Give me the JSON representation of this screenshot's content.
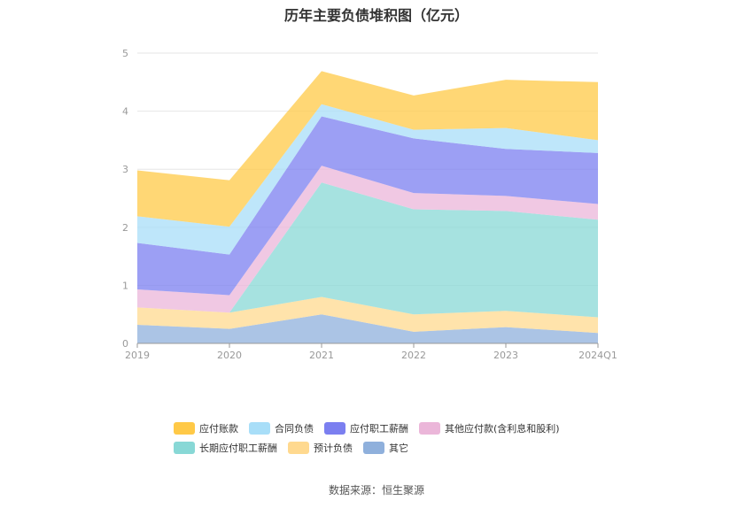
{
  "chart_data": {
    "type": "area",
    "stacked": true,
    "title": "历年主要负债堆积图（亿元）",
    "categories": [
      "2019",
      "2020",
      "2021",
      "2022",
      "2023",
      "2024Q1"
    ],
    "ylim": [
      0,
      5
    ],
    "yticks": [
      "0",
      "1",
      "2",
      "3",
      "4",
      "5"
    ],
    "grid": true,
    "legend_position": "bottom",
    "series": [
      {
        "name": "其它",
        "color": "#8fb0dc",
        "values": [
          0.32,
          0.25,
          0.5,
          0.2,
          0.28,
          0.18
        ]
      },
      {
        "name": "预计负债",
        "color": "#ffd98f",
        "values": [
          0.3,
          0.28,
          0.3,
          0.3,
          0.28,
          0.27
        ]
      },
      {
        "name": "长期应付职工薪酬",
        "color": "#88d8d6",
        "values": [
          0.0,
          0.0,
          1.97,
          1.81,
          1.72,
          1.68
        ]
      },
      {
        "name": "其他应付款(含利息和股利)",
        "color": "#ebb6d9",
        "values": [
          0.31,
          0.3,
          0.29,
          0.28,
          0.26,
          0.27
        ]
      },
      {
        "name": "应付职工薪酬",
        "color": "#7b7ff0",
        "values": [
          0.8,
          0.7,
          0.85,
          0.94,
          0.81,
          0.88
        ]
      },
      {
        "name": "合同负债",
        "color": "#a8def8",
        "values": [
          0.46,
          0.48,
          0.21,
          0.15,
          0.36,
          0.22
        ]
      },
      {
        "name": "应付账款",
        "color": "#ffc947",
        "values": [
          0.79,
          0.8,
          0.57,
          0.59,
          0.83,
          1.0
        ]
      }
    ]
  },
  "legend": {
    "rows": [
      [
        {
          "label": "应付账款",
          "color": "#ffc947"
        },
        {
          "label": "合同负债",
          "color": "#a8def8"
        },
        {
          "label": "应付职工薪酬",
          "color": "#7b7ff0"
        },
        {
          "label": "其他应付款(含利息和股利)",
          "color": "#ebb6d9"
        }
      ],
      [
        {
          "label": "长期应付职工薪酬",
          "color": "#88d8d6"
        },
        {
          "label": "预计负债",
          "color": "#ffd98f"
        },
        {
          "label": "其它",
          "color": "#8fb0dc"
        }
      ]
    ]
  },
  "source": "数据来源：恒生聚源"
}
